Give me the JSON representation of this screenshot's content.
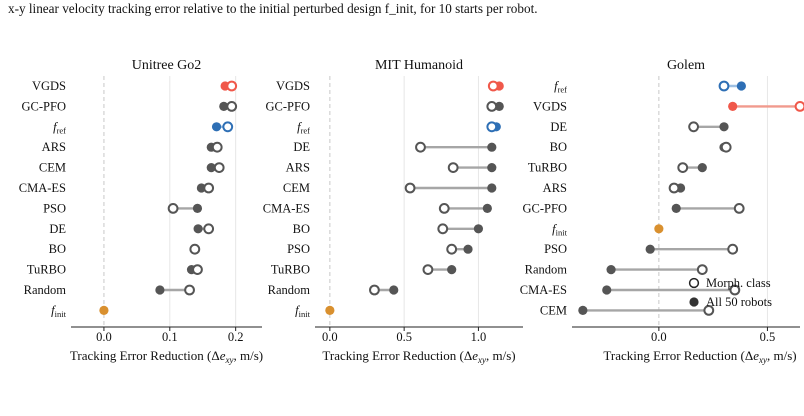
{
  "caption": "x-y linear velocity tracking error relative to the initial perturbed design f_init, for 10 starts per robot.",
  "colors": {
    "neutral": "#555555",
    "neutral_line": "#a6a6a6",
    "vgds": "#f0584a",
    "vgds_line": "#f19a8d",
    "fref": "#2e6fb5",
    "fref_line": "#9ec0e3",
    "finit": "#d9902f",
    "zero_line": "#c8c8c8",
    "grid": "#e6e6e6"
  },
  "chart_data": [
    {
      "type": "dumbbell",
      "title": "Unitree Go2",
      "xlabel": "Tracking Error Reduction (Δe_xy, m/s)",
      "xlim": [
        -0.05,
        0.24
      ],
      "xticks": [
        0.0,
        0.1,
        0.2
      ],
      "xticklabels": [
        "0.0",
        "0.1",
        "0.2"
      ],
      "grid": true,
      "rows": [
        {
          "label": "VGDS",
          "all": 0.184,
          "morph": 0.194
        },
        {
          "label": "GC-PFO",
          "all": 0.182,
          "morph": 0.194
        },
        {
          "label": "f_ref",
          "all": 0.171,
          "morph": 0.188
        },
        {
          "label": "ARS",
          "all": 0.163,
          "morph": 0.172
        },
        {
          "label": "CEM",
          "all": 0.163,
          "morph": 0.175
        },
        {
          "label": "CMA-ES",
          "all": 0.148,
          "morph": 0.159
        },
        {
          "label": "PSO",
          "all": 0.142,
          "morph": 0.105
        },
        {
          "label": "DE",
          "all": 0.143,
          "morph": 0.159
        },
        {
          "label": "BO",
          "all": 0.138,
          "morph": 0.138
        },
        {
          "label": "TuRBO",
          "all": 0.133,
          "morph": 0.142
        },
        {
          "label": "Random",
          "all": 0.085,
          "morph": 0.13
        },
        {
          "label": "f_init",
          "all": 0.0,
          "morph": null
        }
      ]
    },
    {
      "type": "dumbbell",
      "title": "MIT Humanoid",
      "xlabel": "Tracking Error Reduction (Δe_xy, m/s)",
      "xlim": [
        -0.1,
        1.3
      ],
      "xticks": [
        0.0,
        0.5,
        1.0
      ],
      "xticklabels": [
        "0.0",
        "0.5",
        "1.0"
      ],
      "grid": true,
      "rows": [
        {
          "label": "VGDS",
          "all": 1.14,
          "morph": 1.1
        },
        {
          "label": "GC-PFO",
          "all": 1.14,
          "morph": 1.09
        },
        {
          "label": "f_ref",
          "all": 1.12,
          "morph": 1.09
        },
        {
          "label": "DE",
          "all": 1.09,
          "morph": 0.61
        },
        {
          "label": "ARS",
          "all": 1.09,
          "morph": 0.83
        },
        {
          "label": "CEM",
          "all": 1.09,
          "morph": 0.54
        },
        {
          "label": "CMA-ES",
          "all": 1.06,
          "morph": 0.77
        },
        {
          "label": "BO",
          "all": 1.0,
          "morph": 0.76
        },
        {
          "label": "PSO",
          "all": 0.93,
          "morph": 0.82
        },
        {
          "label": "TuRBO",
          "all": 0.82,
          "morph": 0.66
        },
        {
          "label": "Random",
          "all": 0.43,
          "morph": 0.3
        },
        {
          "label": "f_init",
          "all": 0.0,
          "morph": null
        }
      ]
    },
    {
      "type": "dumbbell",
      "title": "Golem",
      "xlabel": "Tracking Error Reduction (Δe_xy, m/s)",
      "xlim": [
        -0.4,
        0.65
      ],
      "xticks": [
        0.0,
        0.5
      ],
      "xticklabels": [
        "0.0",
        "0.5"
      ],
      "grid": true,
      "legend": {
        "position": "bottom-right",
        "entries": [
          "Morph. class",
          "All 50 robots"
        ]
      },
      "rows": [
        {
          "label": "f_ref",
          "all": 0.38,
          "morph": 0.3
        },
        {
          "label": "VGDS",
          "all": 0.34,
          "morph": 0.65
        },
        {
          "label": "DE",
          "all": 0.3,
          "morph": 0.16
        },
        {
          "label": "BO",
          "all": 0.3,
          "morph": 0.31
        },
        {
          "label": "TuRBO",
          "all": 0.2,
          "morph": 0.11
        },
        {
          "label": "ARS",
          "all": 0.1,
          "morph": 0.07
        },
        {
          "label": "GC-PFO",
          "all": 0.08,
          "morph": 0.37
        },
        {
          "label": "f_init",
          "all": 0.0,
          "morph": null
        },
        {
          "label": "PSO",
          "all": -0.04,
          "morph": 0.34
        },
        {
          "label": "Random",
          "all": -0.22,
          "morph": 0.2
        },
        {
          "label": "CMA-ES",
          "all": -0.24,
          "morph": 0.35
        },
        {
          "label": "CEM",
          "all": -0.35,
          "morph": 0.23
        }
      ]
    }
  ]
}
